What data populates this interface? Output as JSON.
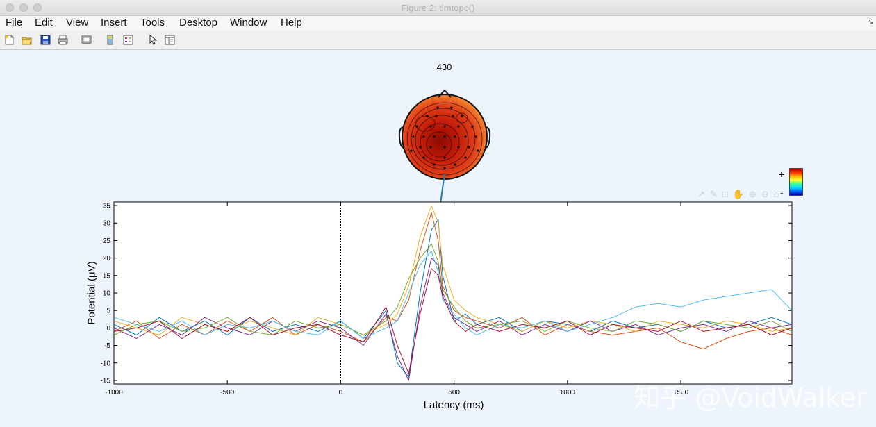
{
  "window": {
    "title": "Figure 2:  timtopo()"
  },
  "menu": [
    "File",
    "Edit",
    "View",
    "Insert",
    "Tools",
    "Desktop",
    "Window",
    "Help"
  ],
  "toolbar_icons": [
    "new-figure-icon",
    "open-file-icon",
    "save-icon",
    "print-icon",
    "print-preview-icon",
    "colorbar-icon",
    "legend-icon",
    "pointer-icon",
    "property-editor-icon"
  ],
  "axes_toolbar_icons": [
    "export-icon",
    "brush-icon",
    "datatip-icon",
    "pan-icon",
    "zoom-in-icon",
    "zoom-out-icon",
    "home-icon"
  ],
  "topo": {
    "latency_label": "430"
  },
  "colorbar": {
    "plus": "+",
    "minus": "-"
  },
  "watermark": "知乎 @VoidWalker",
  "colors": {
    "background": "#eef4fc",
    "topo_fill": "#d82a10",
    "marker_line": "#1f7fa8"
  },
  "chart_data": {
    "type": "line",
    "xlabel": "Latency (ms)",
    "ylabel": "Potential (μV)",
    "xlim": [
      -1000,
      1990
    ],
    "ylim": [
      -16,
      36
    ],
    "xticks": [
      -1000,
      -500,
      0,
      500,
      1000,
      1500
    ],
    "xtick_labels": [
      "-1000",
      "-500",
      "0",
      "500",
      "1000",
      "1500"
    ],
    "yticks": [
      -15,
      -10,
      -5,
      0,
      5,
      10,
      15,
      20,
      25,
      30,
      35
    ],
    "ytick_labels": [
      "-15",
      "-10",
      "-5",
      "0",
      "5",
      "10",
      "15",
      "20",
      "25",
      "30",
      "35"
    ],
    "stimulus_onset_ms": 0,
    "marked_latency_ms": 430,
    "grid": false,
    "series": [
      {
        "color": "#0072bd",
        "x": [
          -1000,
          -900,
          -800,
          -700,
          -600,
          -500,
          -400,
          -300,
          -200,
          -100,
          0,
          100,
          200,
          250,
          300,
          350,
          400,
          430,
          450,
          500,
          550,
          600,
          700,
          800,
          900,
          1000,
          1100,
          1200,
          1300,
          1400,
          1500,
          1600,
          1700,
          1800,
          1900,
          1990
        ],
        "y": [
          1,
          -2,
          3,
          -1,
          2,
          -2,
          3,
          -1,
          1,
          -1,
          2,
          -3,
          5,
          -10,
          -14,
          10,
          28,
          31,
          15,
          2,
          4,
          1,
          3,
          -1,
          2,
          1,
          -1,
          2,
          0,
          1,
          -1,
          2,
          0,
          1,
          3,
          1
        ]
      },
      {
        "color": "#d95319",
        "x": [
          -1000,
          -900,
          -800,
          -700,
          -600,
          -500,
          -400,
          -300,
          -200,
          -100,
          0,
          100,
          200,
          250,
          300,
          350,
          400,
          430,
          450,
          500,
          550,
          600,
          700,
          800,
          900,
          1000,
          1100,
          1200,
          1300,
          1400,
          1500,
          1600,
          1700,
          1800,
          1900,
          1990
        ],
        "y": [
          -1,
          2,
          -3,
          1,
          -2,
          2,
          -1,
          3,
          -2,
          1,
          -1,
          -4,
          3,
          2,
          8,
          22,
          33,
          25,
          12,
          5,
          3,
          2,
          0,
          3,
          -2,
          1,
          -1,
          -2,
          -1,
          0,
          -4,
          -6,
          -3,
          -1,
          0,
          -2
        ]
      },
      {
        "color": "#edb120",
        "x": [
          -1000,
          -900,
          -800,
          -700,
          -600,
          -500,
          -400,
          -300,
          -200,
          -100,
          0,
          100,
          200,
          250,
          300,
          350,
          400,
          430,
          450,
          500,
          550,
          600,
          700,
          800,
          900,
          1000,
          1100,
          1200,
          1300,
          1400,
          1500,
          1600,
          1700,
          1800,
          1900,
          1990
        ],
        "y": [
          2,
          0,
          -2,
          3,
          1,
          -1,
          2,
          0,
          -2,
          3,
          1,
          -2,
          1,
          4,
          12,
          26,
          35,
          30,
          18,
          8,
          5,
          3,
          1,
          -1,
          2,
          0,
          2,
          1,
          -1,
          2,
          1,
          0,
          2,
          1,
          -1,
          0
        ]
      },
      {
        "color": "#7e2f8e",
        "x": [
          -1000,
          -900,
          -800,
          -700,
          -600,
          -500,
          -400,
          -300,
          -200,
          -100,
          0,
          100,
          200,
          250,
          300,
          350,
          400,
          430,
          450,
          500,
          550,
          600,
          700,
          800,
          900,
          1000,
          1100,
          1200,
          1300,
          1400,
          1500,
          1600,
          1700,
          1800,
          1900,
          1990
        ],
        "y": [
          0,
          -3,
          1,
          -2,
          3,
          0,
          -2,
          2,
          -1,
          2,
          0,
          -5,
          4,
          -8,
          -15,
          6,
          20,
          18,
          10,
          3,
          1,
          -1,
          2,
          -2,
          1,
          -1,
          2,
          -1,
          1,
          -2,
          0,
          1,
          -1,
          2,
          0,
          1
        ]
      },
      {
        "color": "#77ac30",
        "x": [
          -1000,
          -900,
          -800,
          -700,
          -600,
          -500,
          -400,
          -300,
          -200,
          -100,
          0,
          100,
          200,
          250,
          300,
          350,
          400,
          430,
          450,
          500,
          550,
          600,
          700,
          800,
          900,
          1000,
          1100,
          1200,
          1300,
          1400,
          1500,
          1600,
          1700,
          1800,
          1900,
          1990
        ],
        "y": [
          -2,
          1,
          2,
          -1,
          0,
          3,
          -1,
          -2,
          2,
          0,
          1,
          -2,
          2,
          6,
          14,
          20,
          24,
          19,
          11,
          6,
          2,
          0,
          1,
          2,
          -1,
          2,
          0,
          -1,
          2,
          1,
          -1,
          2,
          1,
          0,
          2,
          -1
        ]
      },
      {
        "color": "#4dbeee",
        "x": [
          -1000,
          -900,
          -800,
          -700,
          -600,
          -500,
          -400,
          -300,
          -200,
          -100,
          0,
          100,
          200,
          250,
          300,
          350,
          400,
          430,
          450,
          500,
          550,
          600,
          700,
          800,
          900,
          1000,
          1100,
          1200,
          1300,
          1400,
          1500,
          1600,
          1700,
          1800,
          1900,
          1990
        ],
        "y": [
          3,
          1,
          -1,
          2,
          -2,
          1,
          0,
          2,
          -1,
          -2,
          2,
          -3,
          0,
          2,
          10,
          18,
          22,
          16,
          8,
          4,
          0,
          -2,
          1,
          0,
          2,
          -1,
          1,
          3,
          6,
          7,
          6,
          8,
          9,
          10,
          11,
          5
        ]
      },
      {
        "color": "#a2142f",
        "x": [
          -1000,
          -900,
          -800,
          -700,
          -600,
          -500,
          -400,
          -300,
          -200,
          -100,
          0,
          100,
          200,
          250,
          300,
          350,
          400,
          430,
          450,
          500,
          550,
          600,
          700,
          800,
          900,
          1000,
          1100,
          1200,
          1300,
          1400,
          1500,
          1600,
          1700,
          1800,
          1900,
          1990
        ],
        "y": [
          -1,
          0,
          2,
          -3,
          1,
          -1,
          3,
          -2,
          0,
          1,
          -2,
          -4,
          6,
          -5,
          -13,
          4,
          17,
          15,
          9,
          2,
          -1,
          1,
          -1,
          1,
          0,
          2,
          -2,
          1,
          0,
          -1,
          2,
          -1,
          0,
          1,
          -2,
          0
        ]
      }
    ]
  }
}
